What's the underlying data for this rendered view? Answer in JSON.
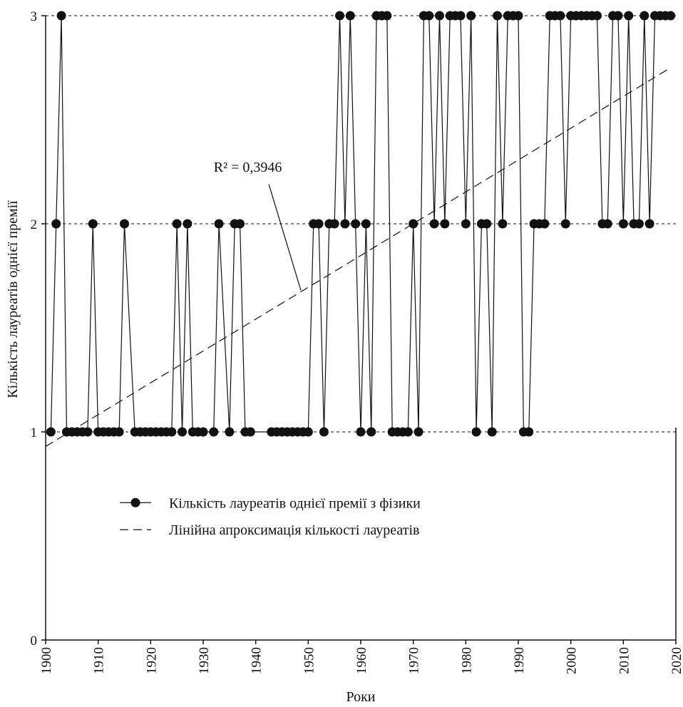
{
  "chart_data": {
    "type": "line",
    "xlabel": "Роки",
    "ylabel": "Кількість лауреатів однієї премії",
    "xlim": [
      1900,
      2020
    ],
    "ylim": [
      0,
      3
    ],
    "x_ticks": [
      "1900",
      "1910",
      "1920",
      "1930",
      "1940",
      "1950",
      "1960",
      "1970",
      "1980",
      "1990",
      "2000",
      "2010",
      "2020"
    ],
    "y_ticks": [
      "0",
      "1",
      "2",
      "3"
    ],
    "gridlines": "dotted horizontal at 1, 2, 3",
    "annotation": {
      "text": "R² = 0,3946"
    },
    "legend": {
      "placement": "center-left",
      "entries": [
        "Кількість лауреатів однієї премії з фізики",
        "Лінійна апроксимація кількості лауреатів"
      ]
    },
    "series": [
      {
        "name": "Кількість лауреатів однієї премії з фізики",
        "style": "line with filled circle markers",
        "points": [
          [
            1901,
            1
          ],
          [
            1902,
            2
          ],
          [
            1903,
            3
          ],
          [
            1904,
            1
          ],
          [
            1905,
            1
          ],
          [
            1906,
            1
          ],
          [
            1907,
            1
          ],
          [
            1908,
            1
          ],
          [
            1909,
            2
          ],
          [
            1910,
            1
          ],
          [
            1911,
            1
          ],
          [
            1912,
            1
          ],
          [
            1913,
            1
          ],
          [
            1914,
            1
          ],
          [
            1915,
            2
          ],
          [
            1917,
            1
          ],
          [
            1918,
            1
          ],
          [
            1919,
            1
          ],
          [
            1920,
            1
          ],
          [
            1921,
            1
          ],
          [
            1922,
            1
          ],
          [
            1923,
            1
          ],
          [
            1924,
            1
          ],
          [
            1925,
            2
          ],
          [
            1926,
            1
          ],
          [
            1927,
            2
          ],
          [
            1928,
            1
          ],
          [
            1929,
            1
          ],
          [
            1930,
            1
          ],
          [
            1932,
            1
          ],
          [
            1933,
            2
          ],
          [
            1935,
            1
          ],
          [
            1936,
            2
          ],
          [
            1937,
            2
          ],
          [
            1938,
            1
          ],
          [
            1939,
            1
          ],
          [
            1943,
            1
          ],
          [
            1944,
            1
          ],
          [
            1945,
            1
          ],
          [
            1946,
            1
          ],
          [
            1947,
            1
          ],
          [
            1948,
            1
          ],
          [
            1949,
            1
          ],
          [
            1950,
            1
          ],
          [
            1951,
            2
          ],
          [
            1952,
            2
          ],
          [
            1953,
            1
          ],
          [
            1954,
            2
          ],
          [
            1955,
            2
          ],
          [
            1956,
            3
          ],
          [
            1957,
            2
          ],
          [
            1958,
            3
          ],
          [
            1959,
            2
          ],
          [
            1960,
            1
          ],
          [
            1961,
            2
          ],
          [
            1962,
            1
          ],
          [
            1963,
            3
          ],
          [
            1964,
            3
          ],
          [
            1965,
            3
          ],
          [
            1966,
            1
          ],
          [
            1967,
            1
          ],
          [
            1968,
            1
          ],
          [
            1969,
            1
          ],
          [
            1970,
            2
          ],
          [
            1971,
            1
          ],
          [
            1972,
            3
          ],
          [
            1973,
            3
          ],
          [
            1974,
            2
          ],
          [
            1975,
            3
          ],
          [
            1976,
            2
          ],
          [
            1977,
            3
          ],
          [
            1978,
            3
          ],
          [
            1979,
            3
          ],
          [
            1980,
            2
          ],
          [
            1981,
            3
          ],
          [
            1982,
            1
          ],
          [
            1983,
            2
          ],
          [
            1984,
            2
          ],
          [
            1985,
            1
          ],
          [
            1986,
            3
          ],
          [
            1987,
            2
          ],
          [
            1988,
            3
          ],
          [
            1989,
            3
          ],
          [
            1990,
            3
          ],
          [
            1991,
            1
          ],
          [
            1992,
            1
          ],
          [
            1993,
            2
          ],
          [
            1994,
            2
          ],
          [
            1995,
            2
          ],
          [
            1996,
            3
          ],
          [
            1997,
            3
          ],
          [
            1998,
            3
          ],
          [
            1999,
            2
          ],
          [
            2000,
            3
          ],
          [
            2001,
            3
          ],
          [
            2002,
            3
          ],
          [
            2003,
            3
          ],
          [
            2004,
            3
          ],
          [
            2005,
            3
          ],
          [
            2006,
            2
          ],
          [
            2007,
            2
          ],
          [
            2008,
            3
          ],
          [
            2009,
            3
          ],
          [
            2010,
            2
          ],
          [
            2011,
            3
          ],
          [
            2012,
            2
          ],
          [
            2013,
            2
          ],
          [
            2014,
            3
          ],
          [
            2015,
            2
          ],
          [
            2016,
            3
          ],
          [
            2017,
            3
          ],
          [
            2018,
            3
          ],
          [
            2019,
            3
          ]
        ]
      },
      {
        "name": "Лінійна апроксимація кількості лауреатів",
        "style": "dashed line",
        "points": [
          [
            1900,
            0.93
          ],
          [
            2019,
            2.75
          ]
        ]
      }
    ]
  }
}
